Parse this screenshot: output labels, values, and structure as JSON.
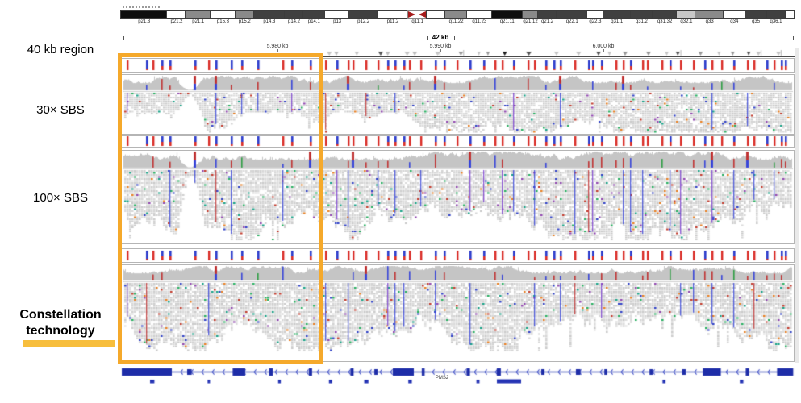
{
  "left_panel": {
    "region_label": "40 kb region",
    "sbs30_label": "30× SBS",
    "sbs100_label": "100× SBS",
    "constellation_line1": "Constellation",
    "constellation_line2": "technology"
  },
  "ruler": {
    "span_label": "42 kb",
    "tick_labels": [
      "5,980 kb",
      "5,990 kb",
      "6,000 kb"
    ]
  },
  "ideogram": {
    "bands": [
      {
        "label": "p21.3",
        "shade": "black",
        "w": 7.5
      },
      {
        "label": "p21.2",
        "shade": "white",
        "w": 3.0
      },
      {
        "label": "p21.1",
        "shade": "gray",
        "w": 4.0
      },
      {
        "label": "p15.3",
        "shade": "white",
        "w": 4.0
      },
      {
        "label": "p15.2",
        "shade": "gray",
        "w": 3.0
      },
      {
        "label": "p14.3",
        "shade": "dark",
        "w": 5.0
      },
      {
        "label": "p14.2",
        "shade": "dark",
        "w": 3.0
      },
      {
        "label": "p14.1",
        "shade": "dark",
        "w": 3.5
      },
      {
        "label": "p13",
        "shade": "white",
        "w": 4.0
      },
      {
        "label": "p12.2",
        "shade": "dark",
        "w": 4.5
      },
      {
        "label": "p11.2",
        "shade": "white",
        "w": 5.0
      },
      {
        "label": "q11.1",
        "shade": "cen",
        "w": 3.0
      },
      {
        "label": "",
        "shade": "white",
        "w": 3.0
      },
      {
        "label": "q11.22",
        "shade": "gray",
        "w": 3.5
      },
      {
        "label": "q11.23",
        "shade": "white",
        "w": 4.0
      },
      {
        "label": "q21.11",
        "shade": "black",
        "w": 5.0
      },
      {
        "label": "q21.12",
        "shade": "gray",
        "w": 2.5
      },
      {
        "label": "q21.2",
        "shade": "dark",
        "w": 3.0
      },
      {
        "label": "q22.1",
        "shade": "dark",
        "w": 5.0
      },
      {
        "label": "q22.3",
        "shade": "white",
        "w": 2.5
      },
      {
        "label": "q31.1",
        "shade": "dark",
        "w": 4.5
      },
      {
        "label": "q31.2",
        "shade": "dark",
        "w": 3.5
      },
      {
        "label": "q31.32",
        "shade": "dark",
        "w": 4.0
      },
      {
        "label": "q32.1",
        "shade": "lightgray",
        "w": 3.0
      },
      {
        "label": "q33",
        "shade": "gray",
        "w": 4.5
      },
      {
        "label": "q34",
        "shade": "white",
        "w": 3.5
      },
      {
        "label": "q35",
        "shade": "dark",
        "w": 3.5
      },
      {
        "label": "q36.1",
        "shade": "dark",
        "w": 3.0
      },
      {
        "label": "",
        "shade": "white",
        "w": 1.5
      }
    ]
  },
  "tracks": [
    {
      "name": "30× SBS",
      "rows": [
        "variants",
        "coverage",
        "alignments"
      ],
      "coverage_dropout": true
    },
    {
      "name": "100× SBS",
      "rows": [
        "variants",
        "coverage",
        "alignments"
      ],
      "coverage_dropout": true
    },
    {
      "name": "Constellation technology",
      "rows": [
        "variants",
        "coverage",
        "alignments"
      ],
      "coverage_dropout": false
    }
  ],
  "gene_track": {
    "gene_label": "PMS2"
  },
  "colors": {
    "highlight_box": "#f5a92b",
    "underline": "#f7be3d",
    "variant_red": "#d92b25",
    "variant_blue": "#2b3bcb",
    "coverage_gray": "#c5c5c5",
    "read_gray": "#d6d6d6",
    "gene_blue": "#1e2da8",
    "centromere_red": "#a61b1b",
    "triangle_gray": "#c7c7c7"
  }
}
